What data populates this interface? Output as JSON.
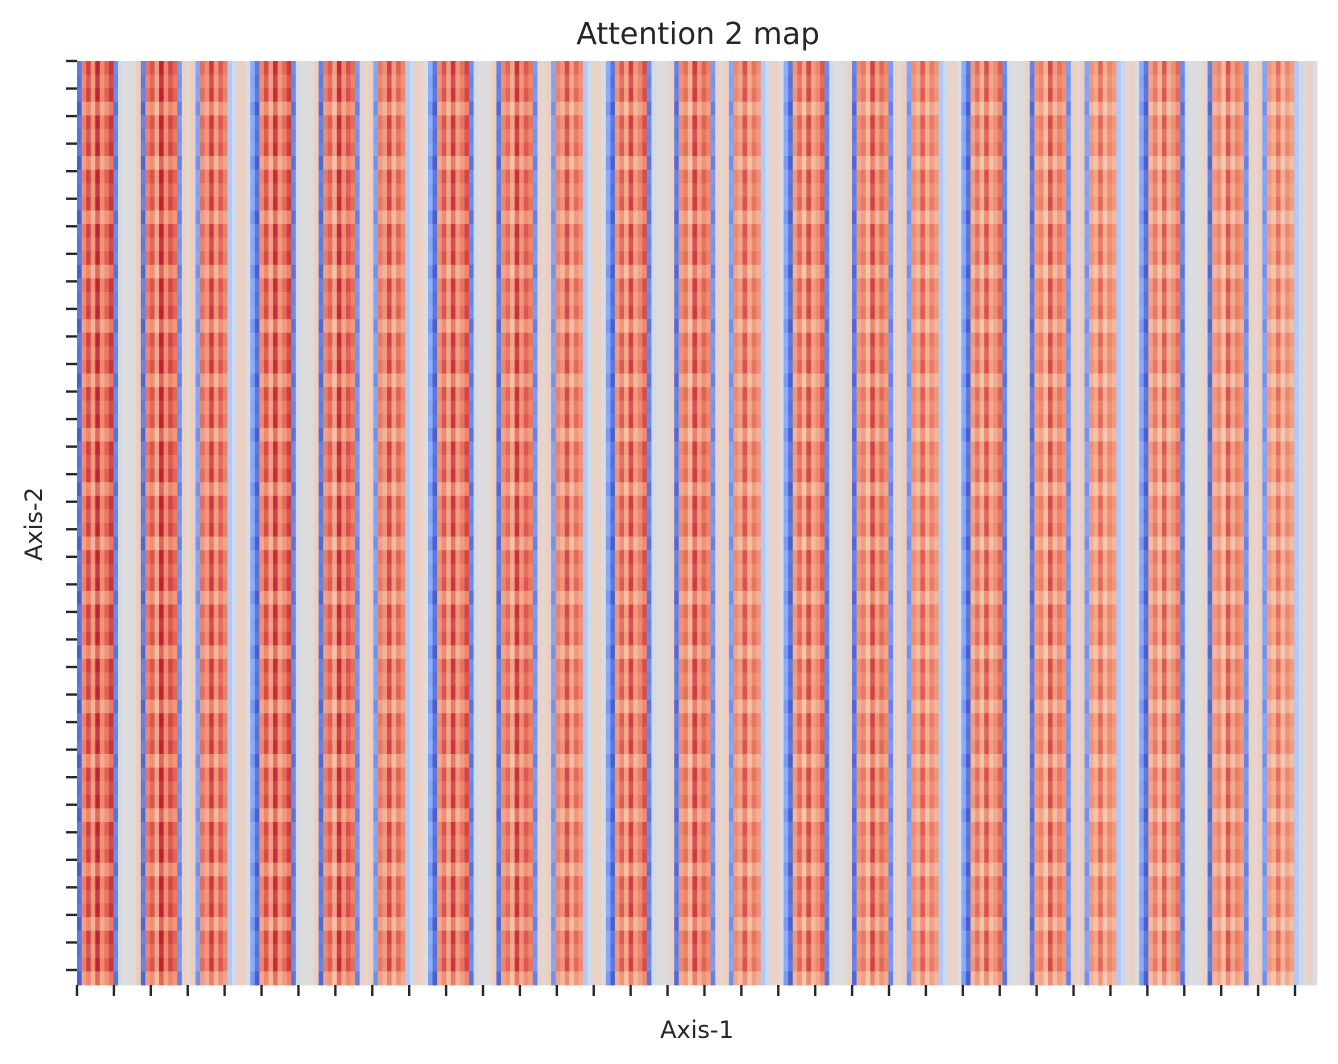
{
  "chart_data": {
    "type": "heatmap",
    "title": "Attention 2 map",
    "xlabel": "Axis-1",
    "ylabel": "Axis-2",
    "x_tick_labels_shown": false,
    "y_tick_labels_shown": false,
    "colormap": "coolwarm",
    "colorbar": false,
    "grid": false,
    "n_x_ticks": 34,
    "n_y_ticks": 34,
    "n_rows": 68,
    "n_cols": 272,
    "cmap_stops": [
      "#3b4cc0",
      "#7b9ff9",
      "#c0d4f5",
      "#dddddd",
      "#f5c4ac",
      "#ee8468",
      "#b40426"
    ],
    "column_pattern_period": 39,
    "column_pattern": [
      0.08,
      0.82,
      0.9,
      0.78,
      0.94,
      0.8,
      0.86,
      0.92,
      0.12,
      0.45,
      0.5,
      0.48,
      0.52,
      0.62,
      0.1,
      0.84,
      0.88,
      0.76,
      0.95,
      0.82,
      0.9,
      0.86,
      0.15,
      0.58,
      0.55,
      0.6,
      0.18,
      0.85,
      0.8,
      0.92,
      0.78,
      0.88,
      0.83,
      0.3,
      0.4,
      0.62,
      0.58,
      0.48,
      0.2
    ],
    "column_drift": "later columns shift toward cooler (lighter) values",
    "row_pattern": "rows alternate slightly in intensity, every 4th row lighter"
  }
}
